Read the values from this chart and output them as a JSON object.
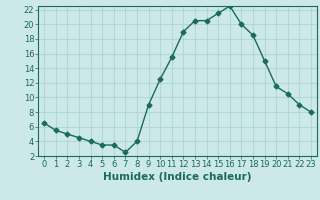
{
  "x": [
    0,
    1,
    2,
    3,
    4,
    5,
    6,
    7,
    8,
    9,
    10,
    11,
    12,
    13,
    14,
    15,
    16,
    17,
    18,
    19,
    20,
    21,
    22,
    23
  ],
  "y": [
    6.5,
    5.5,
    5.0,
    4.5,
    4.0,
    3.5,
    3.5,
    2.5,
    4.0,
    9.0,
    12.5,
    15.5,
    19.0,
    20.5,
    20.5,
    21.5,
    22.5,
    20.0,
    18.5,
    15.0,
    11.5,
    10.5,
    9.0,
    8.0
  ],
  "line_color": "#1a6b5a",
  "marker": "D",
  "marker_size": 2.5,
  "line_width": 1.0,
  "xlabel": "Humidex (Indice chaleur)",
  "xlabel_fontsize": 7.5,
  "ylim": [
    2,
    22.5
  ],
  "xlim": [
    -0.5,
    23.5
  ],
  "yticks": [
    2,
    4,
    6,
    8,
    10,
    12,
    14,
    16,
    18,
    20,
    22
  ],
  "xticks": [
    0,
    1,
    2,
    3,
    4,
    5,
    6,
    7,
    8,
    9,
    10,
    11,
    12,
    13,
    14,
    15,
    16,
    17,
    18,
    19,
    20,
    21,
    22,
    23
  ],
  "background_color": "#cde8e8",
  "grid_color": "#b0d8d8",
  "tick_fontsize": 6,
  "tick_color": "#1a6b5a",
  "spine_color": "#1a6b5a"
}
